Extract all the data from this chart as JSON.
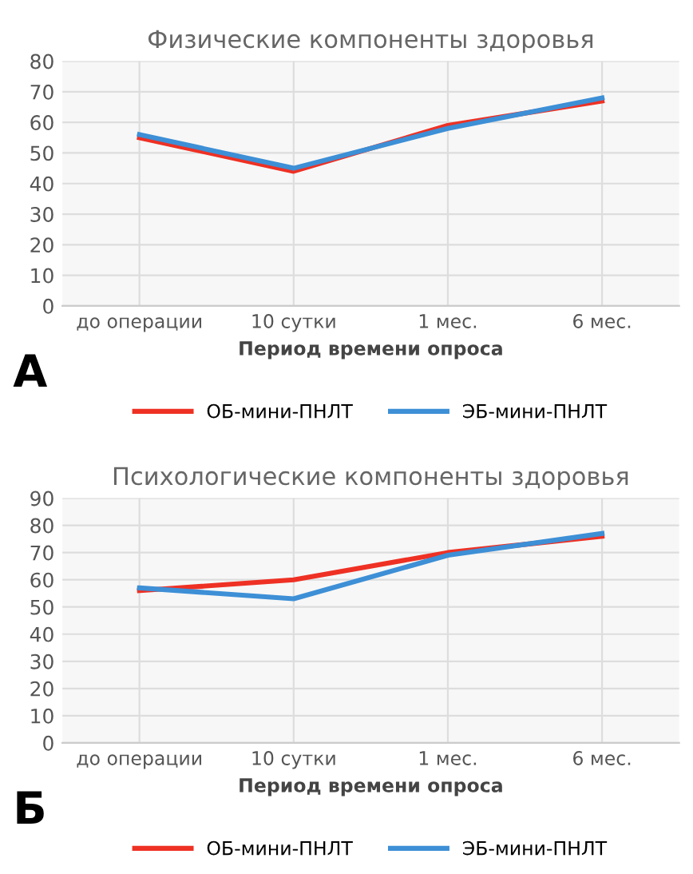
{
  "chart_data": [
    {
      "type": "line",
      "title": "Физические компоненты здоровья",
      "xlabel": "Период времени опроса",
      "categories": [
        "до операции",
        "10 сутки",
        "1 мес.",
        "6 мес."
      ],
      "series": [
        {
          "name": "ОБ-мини-ПНЛТ",
          "color": "#ee3124",
          "values": [
            55,
            44,
            59,
            67
          ]
        },
        {
          "name": "ЭБ-мини-ПНЛТ",
          "color": "#3d8fd6",
          "values": [
            56,
            45,
            58,
            68
          ]
        }
      ],
      "ylim": [
        0,
        80
      ],
      "yticks": [
        0,
        10,
        20,
        30,
        40,
        50,
        60,
        70,
        80
      ],
      "grid": true,
      "legend": "bottom",
      "annotations": [
        "А"
      ]
    },
    {
      "type": "line",
      "title": "Психологические компоненты здоровья",
      "xlabel": "Период времени опроса",
      "categories": [
        "до операции",
        "10 сутки",
        "1 мес.",
        "6 мес."
      ],
      "series": [
        {
          "name": "ОБ-мини-ПНЛТ",
          "color": "#ee3124",
          "values": [
            56,
            60,
            70,
            76
          ]
        },
        {
          "name": "ЭБ-мини-ПНЛТ",
          "color": "#3d8fd6",
          "values": [
            57,
            53,
            69,
            77
          ]
        }
      ],
      "ylim": [
        0,
        90
      ],
      "yticks": [
        0,
        10,
        20,
        30,
        40,
        50,
        60,
        70,
        80,
        90
      ],
      "grid": true,
      "legend": "bottom",
      "annotations": [
        "Б"
      ]
    }
  ]
}
